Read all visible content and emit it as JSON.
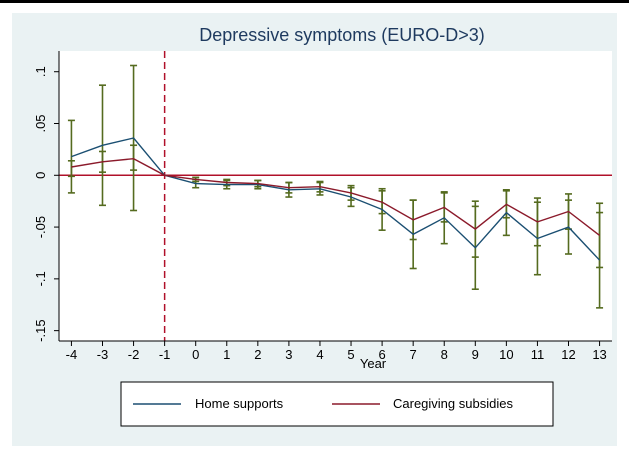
{
  "chart_data": {
    "type": "line",
    "title": "Depressive symptoms (EURO-D>3)",
    "xlabel": "Year",
    "ylabel": "",
    "x": [
      -4,
      -3,
      -2,
      -1,
      0,
      1,
      2,
      3,
      4,
      5,
      6,
      7,
      8,
      9,
      10,
      11,
      12,
      13
    ],
    "xticks": [
      "-4",
      "-3",
      "-2",
      "-1",
      "0",
      "1",
      "2",
      "3",
      "4",
      "5",
      "6",
      "7",
      "8",
      "9",
      "10",
      "11",
      "12",
      "13"
    ],
    "yticks": [
      {
        "value": 0.1,
        "label": ".1"
      },
      {
        "value": 0.05,
        "label": ".05"
      },
      {
        "value": 0,
        "label": "0"
      },
      {
        "value": -0.05,
        "label": "-.05"
      },
      {
        "value": -0.1,
        "label": "-.1"
      },
      {
        "value": -0.15,
        "label": "-.15"
      }
    ],
    "ylim": [
      -0.16,
      0.12
    ],
    "xlim": [
      -4.4,
      13.4
    ],
    "reference_lines": {
      "y": 0,
      "x": -1,
      "y_color": "#b0102a",
      "x_color": "#b0102a"
    },
    "series": [
      {
        "name": "Home supports",
        "color": "#1b4f72",
        "values": [
          0.018,
          0.029,
          0.036,
          0.0,
          -0.008,
          -0.009,
          -0.009,
          -0.014,
          -0.013,
          -0.021,
          -0.033,
          -0.057,
          -0.041,
          -0.07,
          -0.036,
          -0.061,
          -0.05,
          -0.082
        ],
        "ci_low": [
          -0.017,
          -0.029,
          -0.034,
          0.0,
          -0.012,
          -0.013,
          -0.013,
          -0.021,
          -0.019,
          -0.03,
          -0.053,
          -0.09,
          -0.066,
          -0.11,
          -0.058,
          -0.096,
          -0.076,
          -0.128
        ],
        "ci_high": [
          0.053,
          0.087,
          0.106,
          0.0,
          -0.004,
          -0.005,
          -0.005,
          -0.007,
          -0.007,
          -0.012,
          -0.013,
          -0.024,
          -0.016,
          -0.03,
          -0.014,
          -0.026,
          -0.024,
          -0.036
        ]
      },
      {
        "name": "Caregiving subsidies",
        "color": "#8b1a2b",
        "values": [
          0.008,
          0.013,
          0.016,
          0.0,
          -0.004,
          -0.007,
          -0.008,
          -0.012,
          -0.011,
          -0.017,
          -0.026,
          -0.043,
          -0.031,
          -0.052,
          -0.028,
          -0.045,
          -0.035,
          -0.058
        ],
        "ci_low": [
          -0.001,
          0.003,
          0.005,
          0.0,
          -0.006,
          -0.01,
          -0.011,
          -0.017,
          -0.016,
          -0.024,
          -0.037,
          -0.062,
          -0.045,
          -0.079,
          -0.041,
          -0.068,
          -0.052,
          -0.089
        ],
        "ci_high": [
          0.014,
          0.023,
          0.029,
          0.0,
          -0.002,
          -0.004,
          -0.005,
          -0.007,
          -0.006,
          -0.01,
          -0.015,
          -0.024,
          -0.017,
          -0.025,
          -0.015,
          -0.022,
          -0.018,
          -0.027
        ]
      }
    ],
    "ci_color": "#556b1f",
    "grid": false,
    "legend": {
      "position": "bottom",
      "items": [
        "Home supports",
        "Caregiving subsidies"
      ]
    }
  },
  "colors": {
    "background": "#eaf2f3",
    "plot_background": "#ffffff",
    "title": "#1e3a5f"
  }
}
